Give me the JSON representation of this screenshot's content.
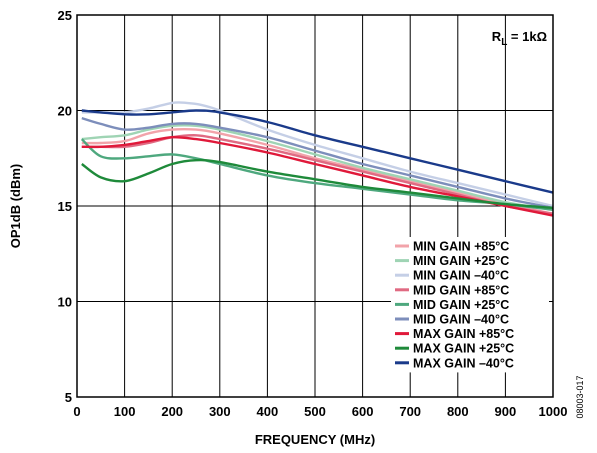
{
  "chart_data": {
    "type": "line",
    "xlabel": "FREQUENCY (MHz)",
    "ylabel": "OP1dB (dBm)",
    "xlim": [
      0,
      1000
    ],
    "ylim": [
      5,
      25
    ],
    "x_ticks": [
      0,
      100,
      200,
      300,
      400,
      500,
      600,
      700,
      800,
      900,
      1000
    ],
    "y_ticks": [
      5,
      10,
      15,
      20,
      25
    ],
    "grid": true,
    "legend_placement": "bottom-right",
    "annotation": {
      "prefix": "R",
      "subscript": "L",
      "suffix": " = 1kΩ"
    },
    "figure_id": "08003-017",
    "series": [
      {
        "name": "MIN GAIN +85°C",
        "color": "#f2a3aa",
        "x": [
          10,
          50,
          100,
          150,
          200,
          250,
          300,
          400,
          500,
          600,
          700,
          800,
          900,
          1000
        ],
        "y": [
          18.3,
          18.3,
          18.4,
          18.8,
          19.0,
          19.0,
          18.8,
          18.2,
          17.5,
          16.9,
          16.3,
          15.7,
          15.1,
          14.6
        ]
      },
      {
        "name": "MIN GAIN +25°C",
        "color": "#9fd4b4",
        "x": [
          10,
          50,
          100,
          150,
          200,
          250,
          300,
          400,
          500,
          600,
          700,
          800,
          900,
          1000
        ],
        "y": [
          18.5,
          18.6,
          18.7,
          19.0,
          19.2,
          19.2,
          19.0,
          18.4,
          17.7,
          17.0,
          16.4,
          15.8,
          15.2,
          14.8
        ]
      },
      {
        "name": "MIN GAIN –40°C",
        "color": "#c5cfe6",
        "x": [
          10,
          50,
          100,
          150,
          200,
          230,
          260,
          300,
          400,
          500,
          600,
          700,
          800,
          900,
          1000
        ],
        "y": [
          19.9,
          19.9,
          19.9,
          20.1,
          20.4,
          20.4,
          20.3,
          20.0,
          19.0,
          18.2,
          17.5,
          16.8,
          16.2,
          15.6,
          15.0
        ]
      },
      {
        "name": "MID GAIN +85°C",
        "color": "#e06a82",
        "x": [
          10,
          50,
          100,
          150,
          200,
          250,
          300,
          400,
          500,
          600,
          700,
          800,
          900,
          1000
        ],
        "y": [
          18.1,
          18.1,
          18.1,
          18.3,
          18.6,
          18.7,
          18.5,
          18.0,
          17.4,
          16.8,
          16.2,
          15.6,
          15.0,
          14.6
        ]
      },
      {
        "name": "MID GAIN +25°C",
        "color": "#4ea87e",
        "x": [
          10,
          50,
          100,
          150,
          200,
          250,
          300,
          400,
          500,
          600,
          700,
          800,
          900,
          1000
        ],
        "y": [
          18.5,
          17.6,
          17.5,
          17.6,
          17.7,
          17.5,
          17.2,
          16.6,
          16.2,
          15.9,
          15.6,
          15.3,
          15.1,
          14.8
        ]
      },
      {
        "name": "MID GAIN –40°C",
        "color": "#7d8ebb",
        "x": [
          10,
          50,
          100,
          150,
          200,
          250,
          300,
          400,
          500,
          600,
          700,
          800,
          900,
          1000
        ],
        "y": [
          19.6,
          19.3,
          19.0,
          19.1,
          19.3,
          19.3,
          19.1,
          18.6,
          17.9,
          17.2,
          16.6,
          16.0,
          15.4,
          14.9
        ]
      },
      {
        "name": "MAX GAIN +85°C",
        "color": "#e0193a",
        "x": [
          10,
          50,
          100,
          150,
          200,
          250,
          300,
          400,
          500,
          600,
          700,
          800,
          900,
          1000
        ],
        "y": [
          18.1,
          18.1,
          18.2,
          18.4,
          18.6,
          18.5,
          18.3,
          17.8,
          17.2,
          16.6,
          16.0,
          15.5,
          15.0,
          14.5
        ]
      },
      {
        "name": "MAX GAIN +25°C",
        "color": "#1e8a3a",
        "x": [
          10,
          50,
          100,
          150,
          200,
          250,
          300,
          400,
          500,
          600,
          700,
          800,
          900,
          1000
        ],
        "y": [
          17.2,
          16.5,
          16.3,
          16.7,
          17.2,
          17.4,
          17.3,
          16.8,
          16.4,
          16.0,
          15.7,
          15.4,
          15.1,
          14.9
        ]
      },
      {
        "name": "MAX GAIN –40°C",
        "color": "#1a3a8a",
        "x": [
          10,
          50,
          100,
          150,
          200,
          250,
          300,
          400,
          500,
          600,
          700,
          800,
          900,
          1000
        ],
        "y": [
          20.0,
          19.9,
          19.8,
          19.8,
          19.9,
          20.0,
          19.9,
          19.4,
          18.7,
          18.1,
          17.5,
          16.9,
          16.3,
          15.7
        ]
      }
    ]
  }
}
